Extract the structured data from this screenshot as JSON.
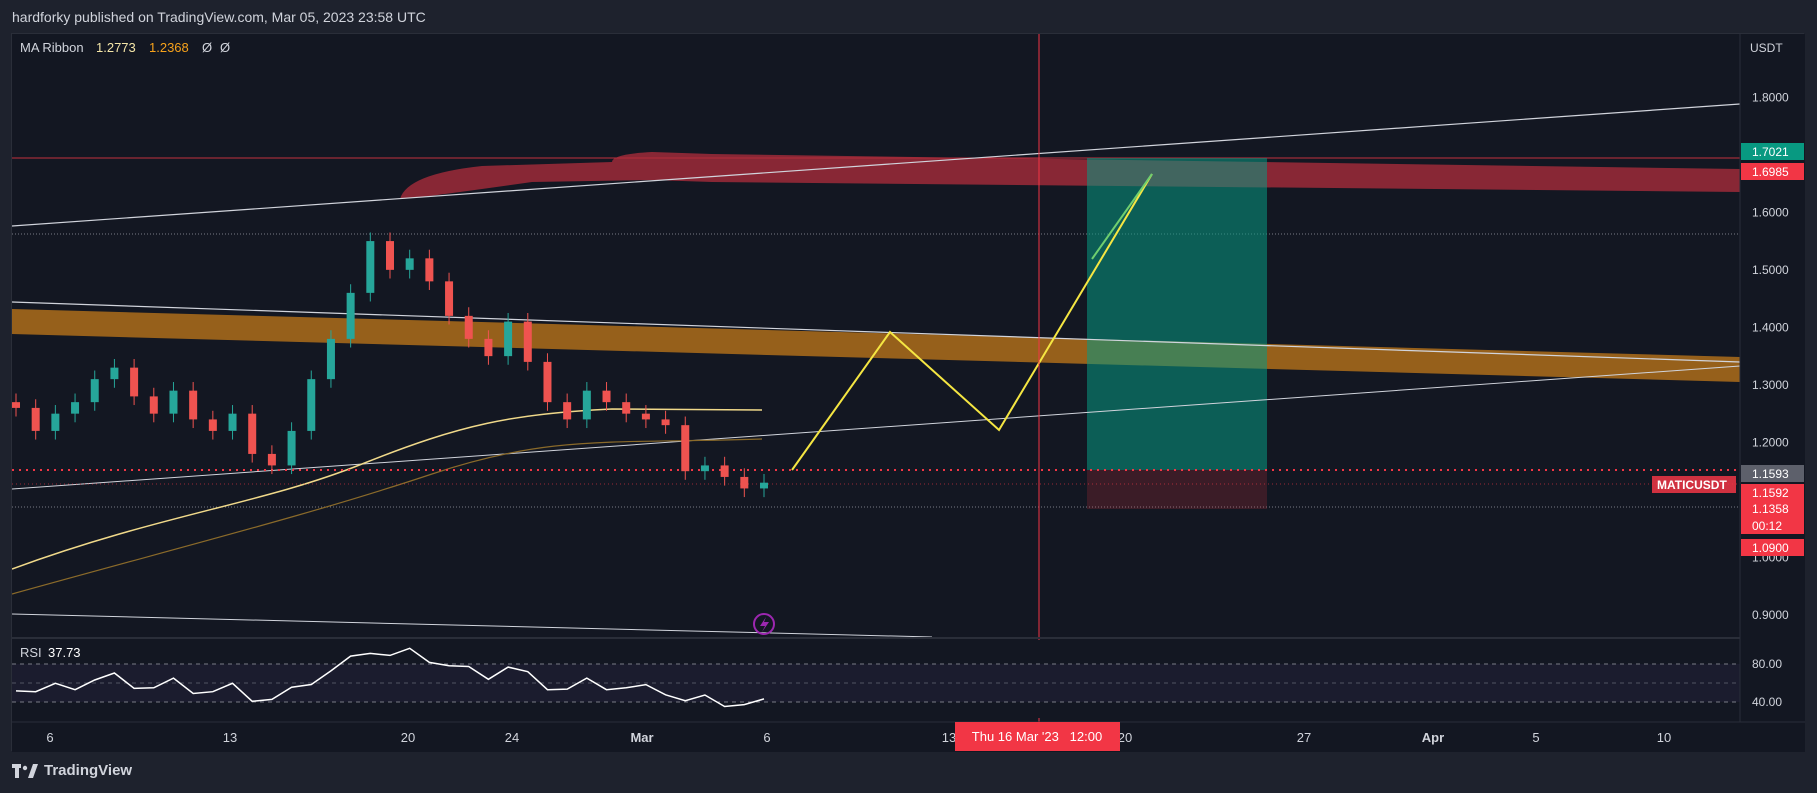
{
  "header": {
    "publish_line": "hardforky published on TradingView.com, Mar 05, 2023 23:58 UTC"
  },
  "footer": {
    "brand": "TradingView"
  },
  "indicators": {
    "ma_ribbon": {
      "label": "MA Ribbon",
      "v1": "1.2773",
      "v2": "1.2368",
      "v3": "Ø",
      "v4": "Ø"
    },
    "rsi": {
      "label": "RSI",
      "value": "37.73",
      "levels": [
        "80.00",
        "40.00"
      ]
    }
  },
  "price_axis": {
    "currency": "USDT",
    "ticks": [
      "1.8000",
      "1.7000",
      "1.6000",
      "1.5000",
      "1.4000",
      "1.3000",
      "1.2000",
      "1.1000",
      "1.0000",
      "0.9000"
    ],
    "tags": [
      {
        "text": "1.7021",
        "color": "#089981"
      },
      {
        "text": "1.6985",
        "color": "#f23645"
      },
      {
        "text": "1.1593",
        "color": "#5d606b"
      },
      {
        "text": "1.1592",
        "color": "#f23645"
      },
      {
        "text": "1.1358",
        "color": "#f23645"
      },
      {
        "text": "00:12",
        "color": "#f23645"
      },
      {
        "text": "1.0900",
        "color": "#f23645"
      }
    ],
    "symbol_tag": "MATICUSDT"
  },
  "time_axis": {
    "ticks": [
      "6",
      "13",
      "20",
      "24",
      "Mar",
      "6",
      "13",
      "20",
      "27",
      "Apr",
      "5",
      "10"
    ],
    "crosshair_label": "Thu 16 Mar '23   12:00"
  },
  "colors": {
    "up": "#26a69a",
    "down": "#ef5350",
    "resistance": "#c0303f",
    "support_band": "#b8731a",
    "target": "#089981",
    "stop": "#f23645",
    "projection": "#f5e642",
    "rsi_line": "#ffffff"
  },
  "chart_data": {
    "type": "candlestick",
    "symbol": "MATICUSDT",
    "ylim": [
      0.86,
      1.91
    ],
    "y_ticks": [
      1.8,
      1.7,
      1.6,
      1.5,
      1.4,
      1.3,
      1.2,
      1.1,
      1.0,
      0.9
    ],
    "ohlc_series": [
      1.26,
      1.22,
      1.25,
      1.27,
      1.31,
      1.33,
      1.28,
      1.25,
      1.29,
      1.24,
      1.22,
      1.25,
      1.18,
      1.16,
      1.22,
      1.31,
      1.38,
      1.46,
      1.55,
      1.5,
      1.52,
      1.48,
      1.42,
      1.38,
      1.35,
      1.41,
      1.34,
      1.27,
      1.24,
      1.29,
      1.27,
      1.25,
      1.24,
      1.23,
      1.15,
      1.16,
      1.14,
      1.12,
      1.13
    ],
    "levels": {
      "take_profit": 1.7021,
      "resistance": 1.6985,
      "entry": 1.1593,
      "entry_line": 1.1592,
      "last_price": 1.1358,
      "stop_loss": 1.09
    },
    "rsi": {
      "value": 37.73,
      "ylim": [
        20,
        90
      ],
      "levels": [
        80,
        40
      ]
    }
  }
}
